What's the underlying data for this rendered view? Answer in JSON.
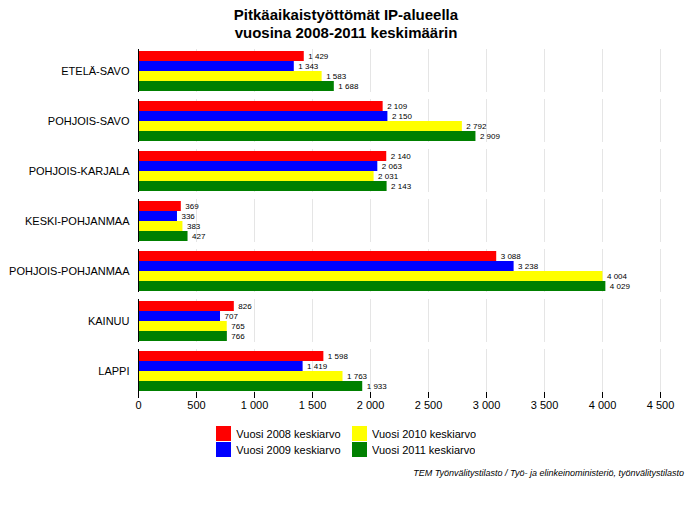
{
  "chart_data": {
    "type": "bar",
    "orientation": "horizontal",
    "title": "Pitkäaikaistyöttömät IP-alueella",
    "subtitle": "vuosina 2008-2011 keskimäärin",
    "annotations": [
      "TEM Työnvälitystilasto / Työ- ja elinkeinoministeriö, työnvälitystilasto"
    ],
    "categories": [
      "ETELÄ-SAVO",
      "POHJOIS-SAVO",
      "POHJOIS-KARJALA",
      "KESKI-POHJANMAA",
      "POHJOIS-POHJANMAA",
      "KAINUU",
      "LAPPI"
    ],
    "series": [
      {
        "name": "Vuosi 2008 keskiarvo",
        "color": "#FF0000",
        "values": [
          1429,
          2109,
          2140,
          369,
          3088,
          826,
          1598
        ],
        "value_labels": [
          "1 429",
          "2 109",
          "2 140",
          "369",
          "3 088",
          "826",
          "1 598"
        ]
      },
      {
        "name": "Vuosi 2009 keskiarvo",
        "color": "#0000FF",
        "values": [
          1343,
          2150,
          2063,
          336,
          3238,
          707,
          1419
        ],
        "value_labels": [
          "1 343",
          "2 150",
          "2 063",
          "336",
          "3 238",
          "707",
          "1 419"
        ]
      },
      {
        "name": "Vuosi 2010 keskiarvo",
        "color": "#FFFF00",
        "values": [
          1583,
          2792,
          2031,
          383,
          4004,
          765,
          1763
        ],
        "value_labels": [
          "1 583",
          "2 792",
          "2 031",
          "383",
          "4 004",
          "765",
          "1 763"
        ]
      },
      {
        "name": "Vuosi 2011 keskiarvo",
        "color": "#008000",
        "values": [
          1688,
          2909,
          2143,
          427,
          4029,
          766,
          1933
        ],
        "value_labels": [
          "1 688",
          "2 909",
          "2 143",
          "427",
          "4 029",
          "766",
          "1 933"
        ]
      }
    ],
    "xlim": [
      0,
      4500
    ],
    "xticks": [
      0,
      500,
      {
        "value": 1000,
        "label": "1 000"
      },
      {
        "value": 1500,
        "label": "1 500"
      },
      {
        "value": 2000,
        "label": "2 000"
      },
      {
        "value": 2500,
        "label": "2 500"
      },
      {
        "value": 3000,
        "label": "3 000"
      },
      {
        "value": 3500,
        "label": "3 500"
      },
      {
        "value": 4000,
        "label": "4 000"
      },
      {
        "value": 4500,
        "label": "4 500"
      }
    ],
    "grid": true,
    "data_labels": true,
    "legend": "bottom"
  }
}
